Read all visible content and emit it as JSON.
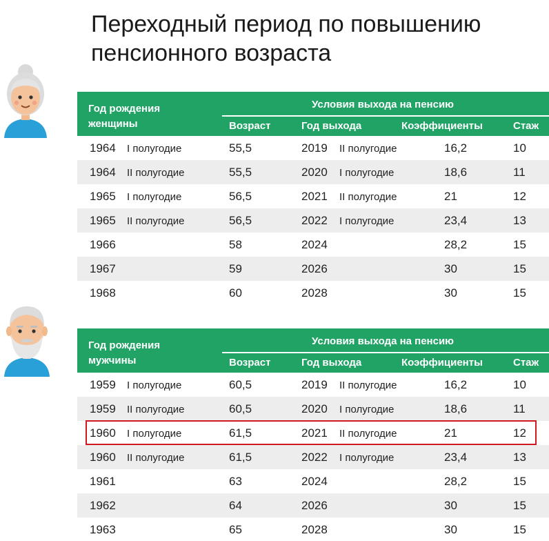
{
  "title_line1": "Переходный период по повышению",
  "title_line2": "пенсионного возраста",
  "colors": {
    "header_green": "#21a366",
    "stripe": "#ededed",
    "highlight_red": "#d0191f"
  },
  "women": {
    "header": {
      "birth_line1": "Год рождения",
      "birth_line2": "женщины",
      "conditions": "Условия выхода на пенсию",
      "age": "Возраст",
      "exit_year": "Год выхода",
      "coefficients": "Коэффициенты",
      "stazh": "Стаж"
    },
    "rows": [
      {
        "year": "1964",
        "half": "I полугодие",
        "age": "55,5",
        "exit": "2019",
        "exit_half": "II полугодие",
        "coef": "16,2",
        "stazh": "10"
      },
      {
        "year": "1964",
        "half": "II полугодие",
        "age": "55,5",
        "exit": "2020",
        "exit_half": "I полугодие",
        "coef": "18,6",
        "stazh": "11"
      },
      {
        "year": "1965",
        "half": "I полугодие",
        "age": "56,5",
        "exit": "2021",
        "exit_half": "II полугодие",
        "coef": "21",
        "stazh": "12"
      },
      {
        "year": "1965",
        "half": "II полугодие",
        "age": "56,5",
        "exit": "2022",
        "exit_half": "I полугодие",
        "coef": "23,4",
        "stazh": "13"
      },
      {
        "year": "1966",
        "half": "",
        "age": "58",
        "exit": "2024",
        "exit_half": "",
        "coef": "28,2",
        "stazh": "15"
      },
      {
        "year": "1967",
        "half": "",
        "age": "59",
        "exit": "2026",
        "exit_half": "",
        "coef": "30",
        "stazh": "15"
      },
      {
        "year": "1968",
        "half": "",
        "age": "60",
        "exit": "2028",
        "exit_half": "",
        "coef": "30",
        "stazh": "15"
      }
    ]
  },
  "men": {
    "header": {
      "birth_line1": "Год рождения",
      "birth_line2": "мужчины",
      "conditions": "Условия выхода на пенсию",
      "age": "Возраст",
      "exit_year": "Год выхода",
      "coefficients": "Коэффициенты",
      "stazh": "Стаж"
    },
    "rows": [
      {
        "year": "1959",
        "half": "I полугодие",
        "age": "60,5",
        "exit": "2019",
        "exit_half": "II полугодие",
        "coef": "16,2",
        "stazh": "10"
      },
      {
        "year": "1959",
        "half": "II полугодие",
        "age": "60,5",
        "exit": "2020",
        "exit_half": "I полугодие",
        "coef": "18,6",
        "stazh": "11"
      },
      {
        "year": "1960",
        "half": "I полугодие",
        "age": "61,5",
        "exit": "2021",
        "exit_half": "II полугодие",
        "coef": "21",
        "stazh": "12"
      },
      {
        "year": "1960",
        "half": "II полугодие",
        "age": "61,5",
        "exit": "2022",
        "exit_half": "I полугодие",
        "coef": "23,4",
        "stazh": "13"
      },
      {
        "year": "1961",
        "half": "",
        "age": "63",
        "exit": "2024",
        "exit_half": "",
        "coef": "28,2",
        "stazh": "15"
      },
      {
        "year": "1962",
        "half": "",
        "age": "64",
        "exit": "2026",
        "exit_half": "",
        "coef": "30",
        "stazh": "15"
      },
      {
        "year": "1963",
        "half": "",
        "age": "65",
        "exit": "2028",
        "exit_half": "",
        "coef": "30",
        "stazh": "15"
      }
    ]
  }
}
